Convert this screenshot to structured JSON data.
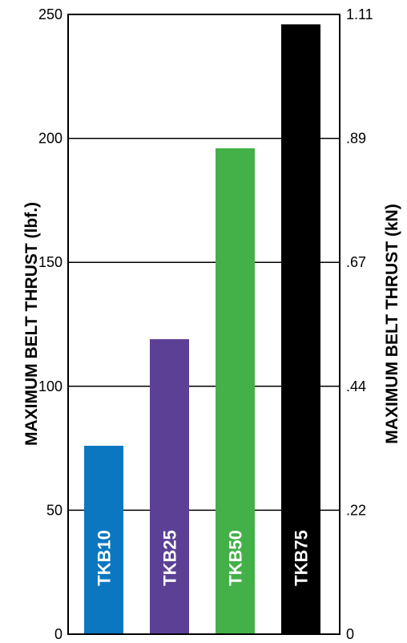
{
  "chart_data": {
    "type": "bar",
    "categories": [
      "TKB10",
      "TKB25",
      "TKB50",
      "TKB75"
    ],
    "values": [
      76,
      119,
      196,
      246
    ],
    "colors": [
      "#0b77c0",
      "#5c4096",
      "#43b048",
      "#000000"
    ],
    "ylabel": "MAXIMUM BELT THRUST (lbf.)",
    "ylabel_right": "MAXIMUM BELT THRUST (kN)",
    "ylim": [
      0,
      250
    ],
    "y_ticks": [
      "0",
      "50",
      "100",
      "150",
      "200",
      "250"
    ],
    "y_ticks_right": [
      "0",
      ".22",
      ".44",
      ".67",
      ".89",
      "1.11"
    ],
    "grid": true,
    "legend": "none"
  }
}
